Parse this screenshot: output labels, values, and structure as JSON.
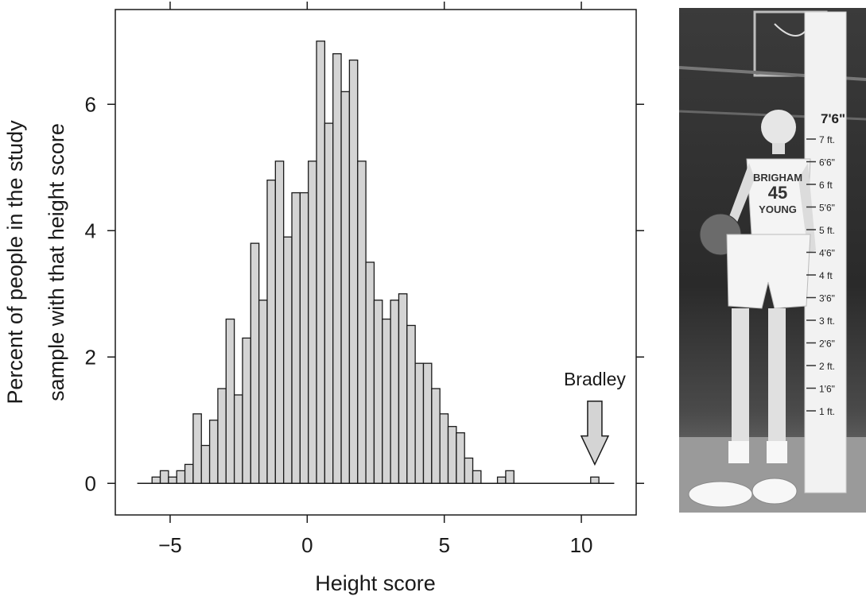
{
  "chart_data": {
    "type": "bar",
    "title": "",
    "xlabel": "Height score",
    "ylabel_lines": [
      "Percent of people in the study",
      "sample with that height score"
    ],
    "xlim": [
      -7.0,
      12.0
    ],
    "ylim": [
      -0.5,
      7.5
    ],
    "x_ticks": [
      -5,
      0,
      5,
      10
    ],
    "x_tick_labels": [
      "−5",
      "0",
      "5",
      "10"
    ],
    "y_ticks": [
      0,
      2,
      4,
      6
    ],
    "y_tick_labels": [
      "0",
      "2",
      "4",
      "6"
    ],
    "grid": false,
    "bin_width": 0.3,
    "baseline": {
      "from": -6.2,
      "to": 11.2
    },
    "bins": [
      {
        "x": -5.66,
        "value": 0.1
      },
      {
        "x": -5.36,
        "value": 0.2
      },
      {
        "x": -5.06,
        "value": 0.1
      },
      {
        "x": -4.76,
        "value": 0.2
      },
      {
        "x": -4.46,
        "value": 0.3
      },
      {
        "x": -4.16,
        "value": 1.1
      },
      {
        "x": -3.86,
        "value": 0.6
      },
      {
        "x": -3.56,
        "value": 1.0
      },
      {
        "x": -3.26,
        "value": 1.5
      },
      {
        "x": -2.96,
        "value": 2.6
      },
      {
        "x": -2.66,
        "value": 1.4
      },
      {
        "x": -2.36,
        "value": 2.3
      },
      {
        "x": -2.06,
        "value": 3.8
      },
      {
        "x": -1.76,
        "value": 2.9
      },
      {
        "x": -1.46,
        "value": 4.8
      },
      {
        "x": -1.16,
        "value": 5.1
      },
      {
        "x": -0.86,
        "value": 3.9
      },
      {
        "x": -0.56,
        "value": 4.6
      },
      {
        "x": -0.26,
        "value": 4.6
      },
      {
        "x": 0.04,
        "value": 5.1
      },
      {
        "x": 0.34,
        "value": 7.0
      },
      {
        "x": 0.64,
        "value": 5.7
      },
      {
        "x": 0.94,
        "value": 6.8
      },
      {
        "x": 1.24,
        "value": 6.2
      },
      {
        "x": 1.54,
        "value": 6.7
      },
      {
        "x": 1.84,
        "value": 5.1
      },
      {
        "x": 2.14,
        "value": 3.5
      },
      {
        "x": 2.44,
        "value": 2.9
      },
      {
        "x": 2.74,
        "value": 2.6
      },
      {
        "x": 3.04,
        "value": 2.9
      },
      {
        "x": 3.34,
        "value": 3.0
      },
      {
        "x": 3.64,
        "value": 2.5
      },
      {
        "x": 3.94,
        "value": 1.9
      },
      {
        "x": 4.24,
        "value": 1.9
      },
      {
        "x": 4.54,
        "value": 1.5
      },
      {
        "x": 4.84,
        "value": 1.1
      },
      {
        "x": 5.14,
        "value": 0.9
      },
      {
        "x": 5.44,
        "value": 0.8
      },
      {
        "x": 5.74,
        "value": 0.4
      },
      {
        "x": 6.04,
        "value": 0.2
      },
      {
        "x": 6.34,
        "value": 0.0
      },
      {
        "x": 6.64,
        "value": 0.0
      },
      {
        "x": 6.94,
        "value": 0.1
      },
      {
        "x": 7.24,
        "value": 0.2
      },
      {
        "x": 10.34,
        "value": 0.1
      }
    ],
    "annotation": {
      "label": "Bradley",
      "x": 10.34,
      "arrow_top": 1.3,
      "arrow_tip": 0.3
    },
    "colors": {
      "bar_fill": "#d4d4d4",
      "bar_stroke": "#1a1a1a",
      "axis": "#1a1a1a"
    }
  },
  "photo": {
    "jersey_text_1": "BRIGHAM",
    "jersey_number": "45",
    "jersey_text_2": "YOUNG",
    "ruler_top_label": "7'6\"",
    "ruler_marks": [
      "7 ft.",
      "6'6\"",
      "6 ft",
      "5'6\"",
      "5 ft.",
      "4'6\"",
      "4 ft",
      "3'6\"",
      "3 ft.",
      "2'6\"",
      "2 ft.",
      "1'6\"",
      "1 ft."
    ]
  }
}
